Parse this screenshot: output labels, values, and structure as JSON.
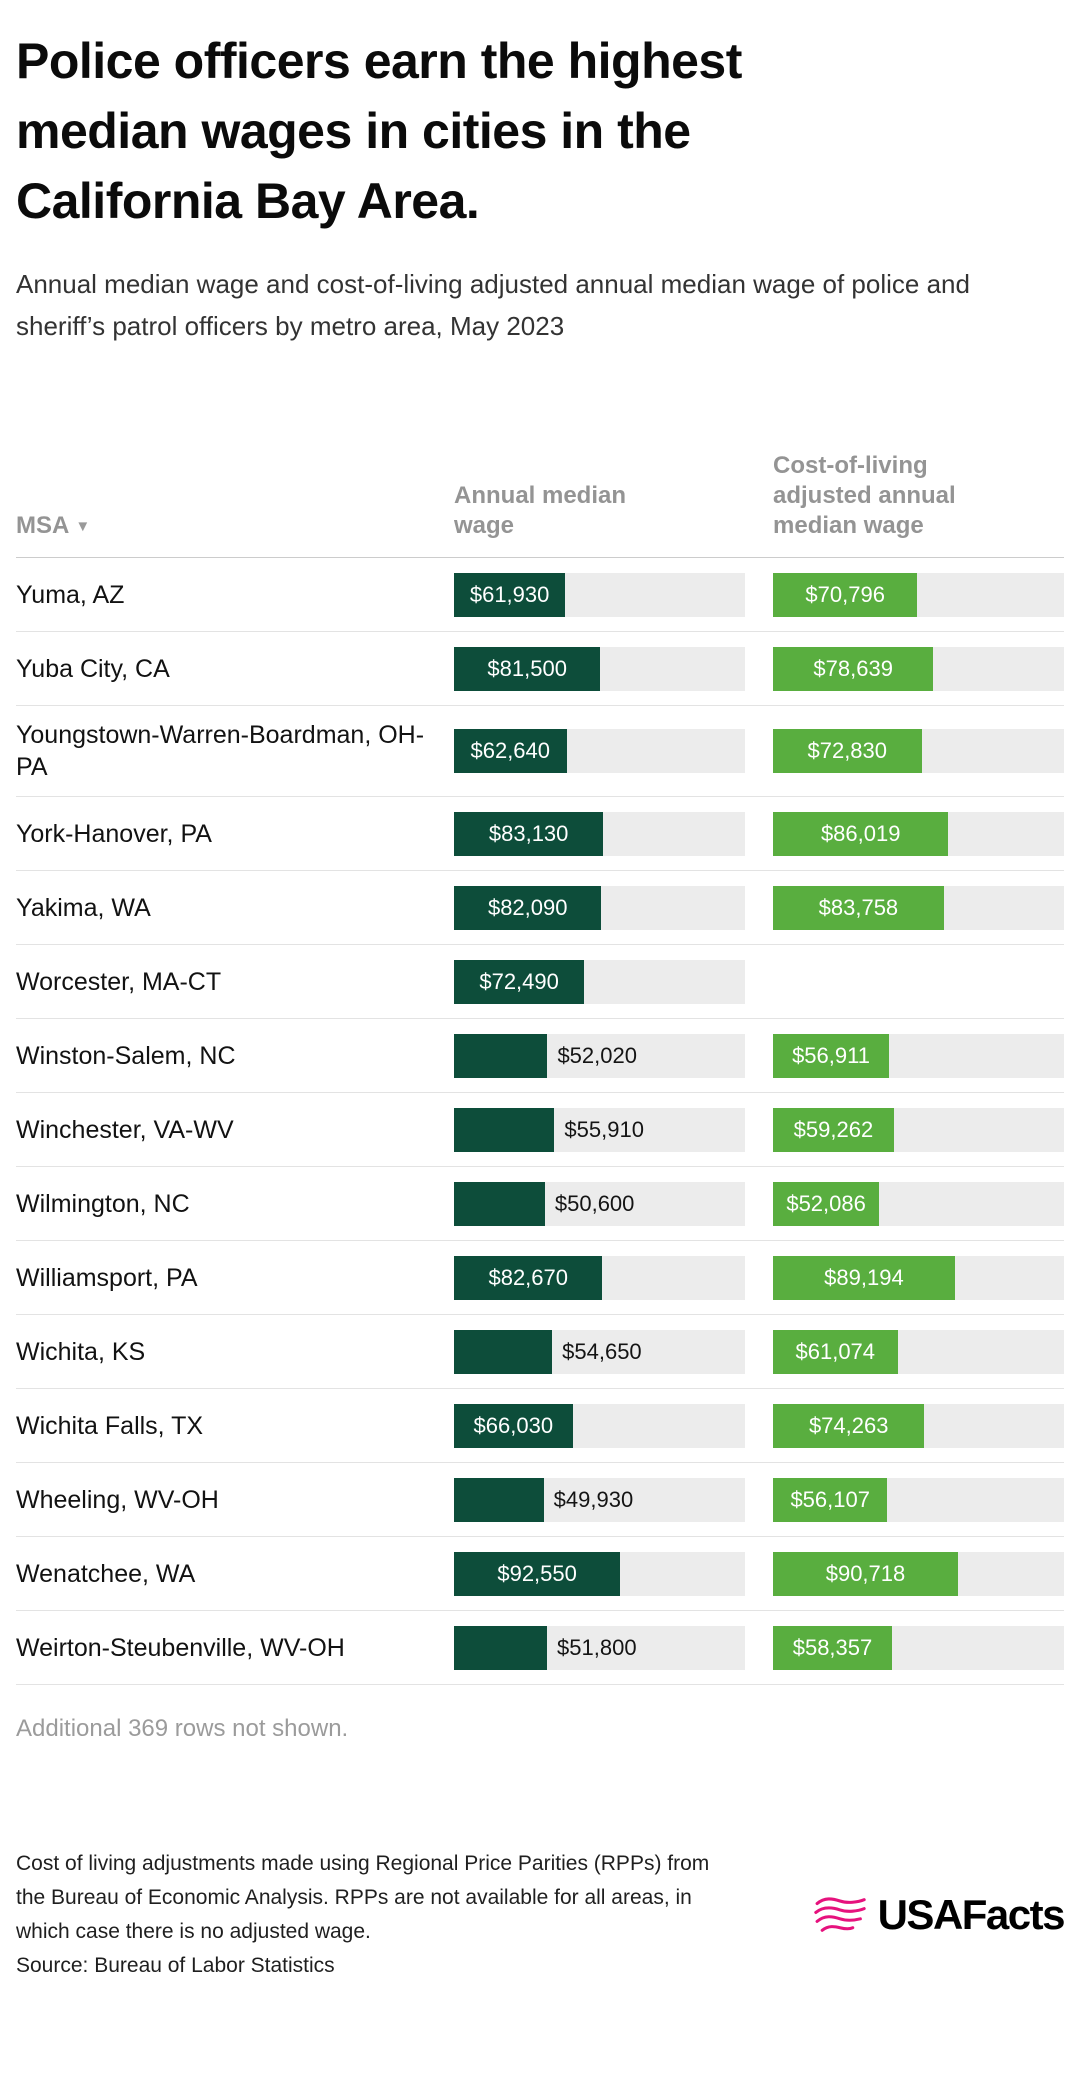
{
  "header": {
    "title": "Police officers earn the highest median wages in cities in the California Bay Area.",
    "subtitle": "Annual median wage and cost-of-living adjusted annual median wage of police and sheriff’s patrol officers by metro area, May 2023"
  },
  "table": {
    "msa_header": "MSA",
    "sort_icon": "▼",
    "wage_header": "Annual median wage",
    "adj_header": "Cost-of-living adjusted annual median wage",
    "footer_note": "Additional 369 rows not shown.",
    "axis": {
      "wage_max": 162000,
      "adj_max": 142700,
      "inside_label_threshold": 0.36
    },
    "rows": [
      {
        "msa": "Yuma, AZ",
        "wage": 61930,
        "wage_label": "$61,930",
        "adj": 70796,
        "adj_label": "$70,796"
      },
      {
        "msa": "Yuba City, CA",
        "wage": 81500,
        "wage_label": "$81,500",
        "adj": 78639,
        "adj_label": "$78,639"
      },
      {
        "msa": "Youngstown-Warren-Boardman, OH-PA",
        "wage": 62640,
        "wage_label": "$62,640",
        "adj": 72830,
        "adj_label": "$72,830"
      },
      {
        "msa": "York-Hanover, PA",
        "wage": 83130,
        "wage_label": "$83,130",
        "adj": 86019,
        "adj_label": "$86,019"
      },
      {
        "msa": "Yakima, WA",
        "wage": 82090,
        "wage_label": "$82,090",
        "adj": 83758,
        "adj_label": "$83,758"
      },
      {
        "msa": "Worcester, MA-CT",
        "wage": 72490,
        "wage_label": "$72,490",
        "adj": null,
        "adj_label": ""
      },
      {
        "msa": "Winston-Salem, NC",
        "wage": 52020,
        "wage_label": "$52,020",
        "adj": 56911,
        "adj_label": "$56,911"
      },
      {
        "msa": "Winchester, VA-WV",
        "wage": 55910,
        "wage_label": "$55,910",
        "adj": 59262,
        "adj_label": "$59,262"
      },
      {
        "msa": "Wilmington, NC",
        "wage": 50600,
        "wage_label": "$50,600",
        "adj": 52086,
        "adj_label": "$52,086"
      },
      {
        "msa": "Williamsport, PA",
        "wage": 82670,
        "wage_label": "$82,670",
        "adj": 89194,
        "adj_label": "$89,194"
      },
      {
        "msa": "Wichita, KS",
        "wage": 54650,
        "wage_label": "$54,650",
        "adj": 61074,
        "adj_label": "$61,074"
      },
      {
        "msa": "Wichita Falls, TX",
        "wage": 66030,
        "wage_label": "$66,030",
        "adj": 74263,
        "adj_label": "$74,263"
      },
      {
        "msa": "Wheeling, WV-OH",
        "wage": 49930,
        "wage_label": "$49,930",
        "adj": 56107,
        "adj_label": "$56,107"
      },
      {
        "msa": "Wenatchee, WA",
        "wage": 92550,
        "wage_label": "$92,550",
        "adj": 90718,
        "adj_label": "$90,718"
      },
      {
        "msa": "Weirton-Steubenville, WV-OH",
        "wage": 51800,
        "wage_label": "$51,800",
        "adj": 58357,
        "adj_label": "$58,357"
      }
    ]
  },
  "footer": {
    "note": "Cost of living adjustments made using Regional Price Parities (RPPs) from the Bureau of Economic Analysis. RPPs are not available for all areas, in which case there is no adjusted wage.",
    "source": "Source: Bureau of Labor Statistics",
    "logo_text": "USAFacts"
  },
  "colors": {
    "wage_bar": "#0d4d3a",
    "adj_bar": "#59ae3f",
    "track": "#ececec",
    "logo_pink": "#e6127d"
  },
  "chart_data": {
    "type": "bar",
    "title": "Police officers earn the highest median wages in cities in the California Bay Area.",
    "subtitle": "Annual median wage and cost-of-living adjusted annual median wage of police and sheriff’s patrol officers by metro area, May 2023",
    "categories": [
      "Yuma, AZ",
      "Yuba City, CA",
      "Youngstown-Warren-Boardman, OH-PA",
      "York-Hanover, PA",
      "Yakima, WA",
      "Worcester, MA-CT",
      "Winston-Salem, NC",
      "Winchester, VA-WV",
      "Wilmington, NC",
      "Williamsport, PA",
      "Wichita, KS",
      "Wichita Falls, TX",
      "Wheeling, WV-OH",
      "Wenatchee, WA",
      "Weirton-Steubenville, WV-OH"
    ],
    "series": [
      {
        "name": "Annual median wage",
        "values": [
          61930,
          81500,
          62640,
          83130,
          82090,
          72490,
          52020,
          55910,
          50600,
          82670,
          54650,
          66030,
          49930,
          92550,
          51800
        ],
        "axis_max_estimate": 162000
      },
      {
        "name": "Cost-of-living adjusted annual median wage",
        "values": [
          70796,
          78639,
          72830,
          86019,
          83758,
          null,
          56911,
          59262,
          52086,
          89194,
          61074,
          74263,
          56107,
          90718,
          58357
        ],
        "axis_max_estimate": 142700
      }
    ],
    "sort": {
      "column": "MSA",
      "direction": "descending"
    },
    "annotations": [
      "Additional 369 rows not shown."
    ],
    "legend_position": "column-headers",
    "grid": false
  }
}
